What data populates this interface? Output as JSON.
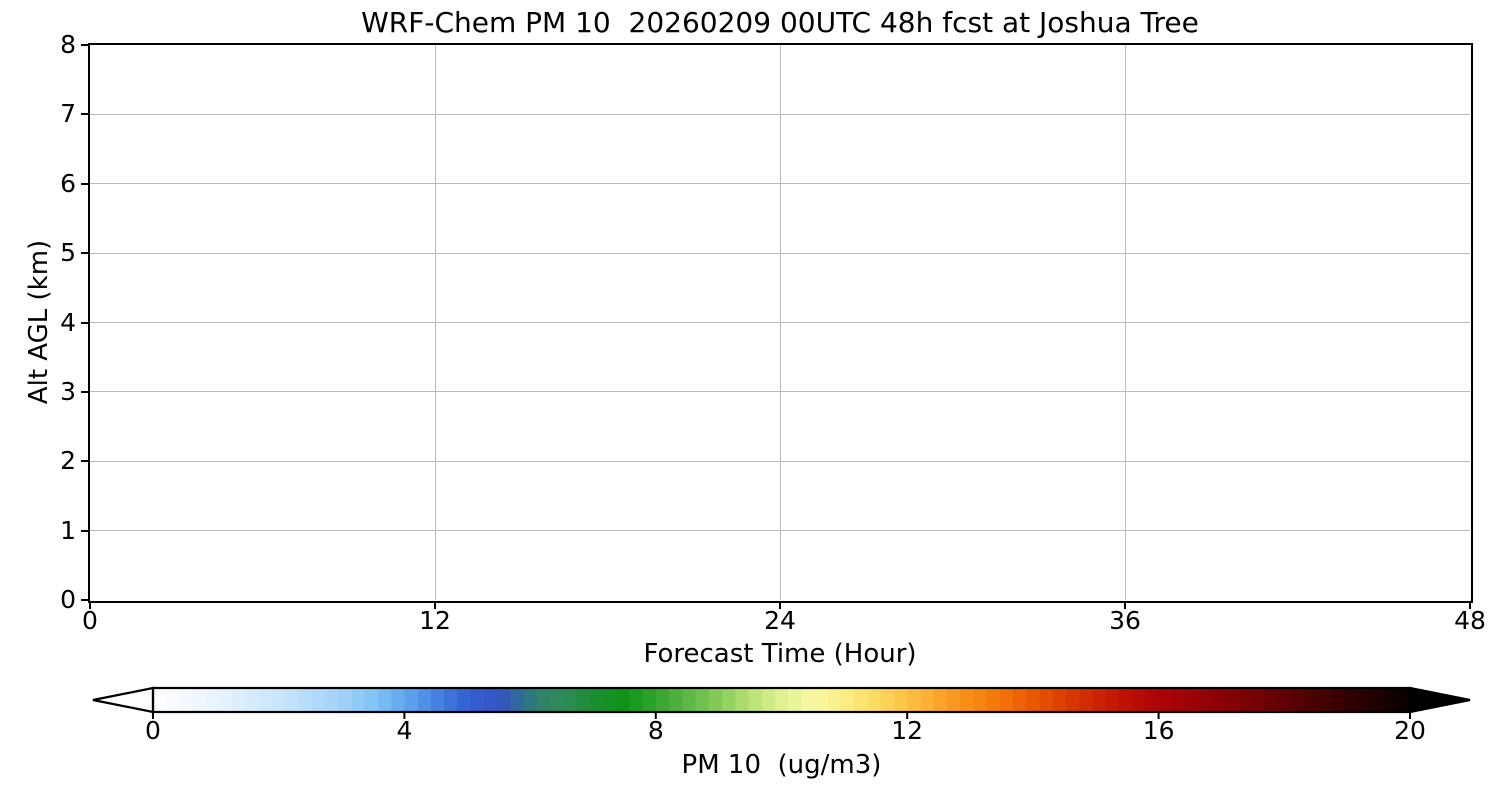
{
  "chart_data": {
    "type": "heatmap",
    "title": "WRF-Chem PM 10  20260209 00UTC 48h fcst at Joshua Tree",
    "xlabel": "Forecast Time (Hour)",
    "ylabel": "Alt AGL (km)",
    "xlim": [
      0,
      48
    ],
    "ylim": [
      0,
      8
    ],
    "x_ticks": [
      0,
      12,
      24,
      36,
      48
    ],
    "y_ticks": [
      0,
      1,
      2,
      3,
      4,
      5,
      6,
      7,
      8
    ],
    "grid": true,
    "values": [],
    "note": "plot area is empty - no PM10 contour values are rendered in the screenshot",
    "colorbar": {
      "label": "PM 10  (ug/m3)",
      "ticks": [
        0,
        4,
        8,
        12,
        16,
        20
      ],
      "range": [
        0,
        20
      ],
      "extend": "both",
      "under_color": "#ffffff",
      "over_color": "#000000",
      "segments": 95,
      "stops": [
        [
          0.0,
          "#ffffff"
        ],
        [
          1.0,
          "#e8f4fe"
        ],
        [
          2.0,
          "#c8e6fc"
        ],
        [
          3.0,
          "#a0d2fa"
        ],
        [
          3.5,
          "#82c4f6"
        ],
        [
          4.0,
          "#5fa8ee"
        ],
        [
          4.5,
          "#4583e2"
        ],
        [
          5.0,
          "#3560d4"
        ],
        [
          5.5,
          "#3252c4"
        ],
        [
          5.8,
          "#31699d"
        ],
        [
          6.1,
          "#2f8070"
        ],
        [
          6.5,
          "#2e8b57"
        ],
        [
          7.0,
          "#1d8e33"
        ],
        [
          7.5,
          "#0e9418"
        ],
        [
          8.0,
          "#33a42c"
        ],
        [
          8.5,
          "#5cb747"
        ],
        [
          9.0,
          "#85cc58"
        ],
        [
          9.5,
          "#b5e274"
        ],
        [
          10.0,
          "#e0f192"
        ],
        [
          10.5,
          "#f8f9a5"
        ],
        [
          11.0,
          "#fdee83"
        ],
        [
          11.5,
          "#fdda63"
        ],
        [
          12.0,
          "#fdc246"
        ],
        [
          12.5,
          "#fba52b"
        ],
        [
          13.0,
          "#f78c15"
        ],
        [
          13.5,
          "#f37307"
        ],
        [
          14.0,
          "#e95803"
        ],
        [
          14.5,
          "#db3e02"
        ],
        [
          15.0,
          "#cc2502"
        ],
        [
          15.5,
          "#bd0f03"
        ],
        [
          16.0,
          "#ad0305"
        ],
        [
          16.5,
          "#9c0305"
        ],
        [
          17.0,
          "#8a0204"
        ],
        [
          17.5,
          "#750203"
        ],
        [
          18.0,
          "#5f0102"
        ],
        [
          18.5,
          "#490101"
        ],
        [
          19.0,
          "#330001"
        ],
        [
          19.5,
          "#1d0000"
        ],
        [
          20.0,
          "#080000"
        ]
      ]
    }
  },
  "colors": {
    "background": "#ffffff",
    "axis": "#000000",
    "grid": "#bbbbbb",
    "text": "#000000"
  }
}
